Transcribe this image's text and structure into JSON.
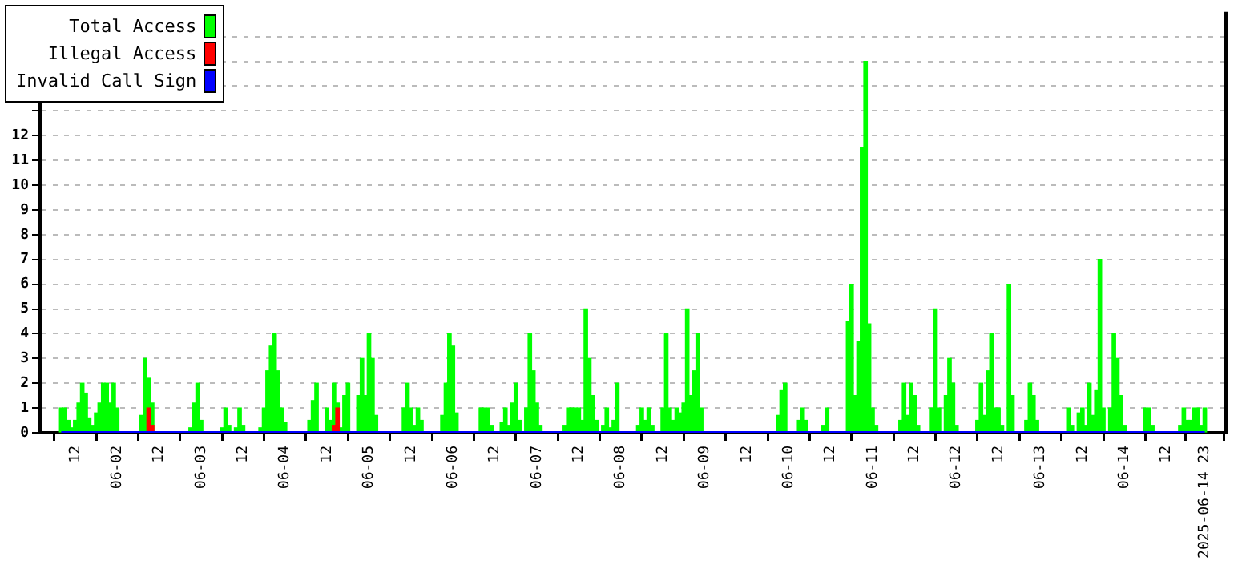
{
  "chart_data": {
    "type": "bar",
    "xlim": [
      "2025-06-01T08:00",
      "2025-06-14T23:00"
    ],
    "xticks": [
      {
        "value": "2025-06-01T12:00",
        "label": "12"
      },
      {
        "value": "2025-06-02T00:00",
        "label": "06-02"
      },
      {
        "value": "2025-06-02T12:00",
        "label": "12"
      },
      {
        "value": "2025-06-03T00:00",
        "label": "06-03"
      },
      {
        "value": "2025-06-03T12:00",
        "label": "12"
      },
      {
        "value": "2025-06-04T00:00",
        "label": "06-04"
      },
      {
        "value": "2025-06-04T12:00",
        "label": "12"
      },
      {
        "value": "2025-06-05T00:00",
        "label": "06-05"
      },
      {
        "value": "2025-06-05T12:00",
        "label": "12"
      },
      {
        "value": "2025-06-06T00:00",
        "label": "06-06"
      },
      {
        "value": "2025-06-06T12:00",
        "label": "12"
      },
      {
        "value": "2025-06-07T00:00",
        "label": "06-07"
      },
      {
        "value": "2025-06-07T12:00",
        "label": "12"
      },
      {
        "value": "2025-06-08T00:00",
        "label": "06-08"
      },
      {
        "value": "2025-06-08T12:00",
        "label": "12"
      },
      {
        "value": "2025-06-09T00:00",
        "label": "06-09"
      },
      {
        "value": "2025-06-09T12:00",
        "label": "12"
      },
      {
        "value": "2025-06-10T00:00",
        "label": "06-10"
      },
      {
        "value": "2025-06-10T12:00",
        "label": "12"
      },
      {
        "value": "2025-06-11T00:00",
        "label": "06-11"
      },
      {
        "value": "2025-06-11T12:00",
        "label": "12"
      },
      {
        "value": "2025-06-12T00:00",
        "label": "06-12"
      },
      {
        "value": "2025-06-12T12:00",
        "label": "12"
      },
      {
        "value": "2025-06-13T00:00",
        "label": "06-13"
      },
      {
        "value": "2025-06-13T12:00",
        "label": "12"
      },
      {
        "value": "2025-06-14T00:00",
        "label": "06-14"
      },
      {
        "value": "2025-06-14T12:00",
        "label": "12"
      },
      {
        "value": "2025-06-14T23:00",
        "label": "2025-06-14 23"
      }
    ],
    "ylim": [
      0,
      17
    ],
    "yticks": [
      0,
      1,
      2,
      3,
      4,
      5,
      6,
      7,
      8,
      9,
      10,
      11,
      12,
      {
        "value": 13,
        "label": null
      },
      {
        "value": 14,
        "label": null
      },
      {
        "value": 15,
        "label": null
      },
      {
        "value": 16,
        "label": null
      }
    ],
    "grid": "y",
    "legend": "top left",
    "series": [
      {
        "name": "Total Access",
        "color": "#00ff00",
        "x": [
          "2025-06-01T08:00",
          "2025-06-01T09:00",
          "2025-06-01T10:00",
          "2025-06-01T11:00",
          "2025-06-01T12:00",
          "2025-06-01T13:00",
          "2025-06-01T14:00",
          "2025-06-01T15:00",
          "2025-06-01T16:00",
          "2025-06-01T17:00",
          "2025-06-01T18:00",
          "2025-06-01T19:00",
          "2025-06-01T20:00",
          "2025-06-01T21:00",
          "2025-06-01T22:00",
          "2025-06-01T23:00",
          "2025-06-02T00:00",
          "2025-06-02T07:00",
          "2025-06-02T08:00",
          "2025-06-02T09:00",
          "2025-06-02T10:00",
          "2025-06-02T21:00",
          "2025-06-02T22:00",
          "2025-06-02T23:00",
          "2025-06-03T00:00",
          "2025-06-03T06:00",
          "2025-06-03T07:00",
          "2025-06-03T08:00",
          "2025-06-03T10:00",
          "2025-06-03T11:00",
          "2025-06-03T12:00",
          "2025-06-03T17:00",
          "2025-06-03T18:00",
          "2025-06-03T19:00",
          "2025-06-03T20:00",
          "2025-06-03T21:00",
          "2025-06-03T22:00",
          "2025-06-03T23:00",
          "2025-06-04T00:00",
          "2025-06-04T07:00",
          "2025-06-04T08:00",
          "2025-06-04T09:00",
          "2025-06-04T12:00",
          "2025-06-04T13:00",
          "2025-06-04T14:00",
          "2025-06-04T15:00",
          "2025-06-04T16:00",
          "2025-06-04T17:00",
          "2025-06-04T18:00",
          "2025-06-04T21:00",
          "2025-06-04T22:00",
          "2025-06-04T23:00",
          "2025-06-05T00:00",
          "2025-06-05T01:00",
          "2025-06-05T02:00",
          "2025-06-05T10:00",
          "2025-06-05T11:00",
          "2025-06-05T12:00",
          "2025-06-05T13:00",
          "2025-06-05T14:00",
          "2025-06-05T15:00",
          "2025-06-05T21:00",
          "2025-06-05T22:00",
          "2025-06-05T23:00",
          "2025-06-06T00:00",
          "2025-06-06T01:00",
          "2025-06-06T08:00",
          "2025-06-06T09:00",
          "2025-06-06T10:00",
          "2025-06-06T11:00",
          "2025-06-06T14:00",
          "2025-06-06T15:00",
          "2025-06-06T16:00",
          "2025-06-06T17:00",
          "2025-06-06T18:00",
          "2025-06-06T19:00",
          "2025-06-06T21:00",
          "2025-06-06T22:00",
          "2025-06-06T23:00",
          "2025-06-07T00:00",
          "2025-06-07T01:00",
          "2025-06-07T08:00",
          "2025-06-07T09:00",
          "2025-06-07T10:00",
          "2025-06-07T11:00",
          "2025-06-07T12:00",
          "2025-06-07T13:00",
          "2025-06-07T14:00",
          "2025-06-07T15:00",
          "2025-06-07T16:00",
          "2025-06-07T17:00",
          "2025-06-07T19:00",
          "2025-06-07T20:00",
          "2025-06-07T21:00",
          "2025-06-07T22:00",
          "2025-06-07T23:00",
          "2025-06-08T05:00",
          "2025-06-08T06:00",
          "2025-06-08T07:00",
          "2025-06-08T08:00",
          "2025-06-08T09:00",
          "2025-06-08T12:00",
          "2025-06-08T13:00",
          "2025-06-08T14:00",
          "2025-06-08T15:00",
          "2025-06-08T16:00",
          "2025-06-08T17:00",
          "2025-06-08T18:00",
          "2025-06-08T19:00",
          "2025-06-08T20:00",
          "2025-06-08T21:00",
          "2025-06-08T22:00",
          "2025-06-08T23:00",
          "2025-06-09T21:00",
          "2025-06-09T22:00",
          "2025-06-09T23:00",
          "2025-06-10T03:00",
          "2025-06-10T04:00",
          "2025-06-10T05:00",
          "2025-06-10T10:00",
          "2025-06-10T11:00",
          "2025-06-10T17:00",
          "2025-06-10T18:00",
          "2025-06-10T19:00",
          "2025-06-10T20:00",
          "2025-06-10T21:00",
          "2025-06-10T22:00",
          "2025-06-10T23:00",
          "2025-06-11T00:00",
          "2025-06-11T01:00",
          "2025-06-11T08:00",
          "2025-06-11T09:00",
          "2025-06-11T10:00",
          "2025-06-11T11:00",
          "2025-06-11T12:00",
          "2025-06-11T13:00",
          "2025-06-11T17:00",
          "2025-06-11T18:00",
          "2025-06-11T19:00",
          "2025-06-11T21:00",
          "2025-06-11T22:00",
          "2025-06-11T23:00",
          "2025-06-12T00:00",
          "2025-06-12T06:00",
          "2025-06-12T07:00",
          "2025-06-12T08:00",
          "2025-06-12T09:00",
          "2025-06-12T10:00",
          "2025-06-12T11:00",
          "2025-06-12T12:00",
          "2025-06-12T13:00",
          "2025-06-12T15:00",
          "2025-06-12T16:00",
          "2025-06-12T20:00",
          "2025-06-12T21:00",
          "2025-06-12T22:00",
          "2025-06-12T23:00",
          "2025-06-13T08:00",
          "2025-06-13T09:00",
          "2025-06-13T11:00",
          "2025-06-13T12:00",
          "2025-06-13T13:00",
          "2025-06-13T14:00",
          "2025-06-13T15:00",
          "2025-06-13T16:00",
          "2025-06-13T17:00",
          "2025-06-13T18:00",
          "2025-06-13T20:00",
          "2025-06-13T21:00",
          "2025-06-13T22:00",
          "2025-06-13T23:00",
          "2025-06-14T00:00",
          "2025-06-14T06:00",
          "2025-06-14T07:00",
          "2025-06-14T08:00",
          "2025-06-14T16:00",
          "2025-06-14T17:00",
          "2025-06-14T18:00",
          "2025-06-14T19:00",
          "2025-06-14T20:00",
          "2025-06-14T21:00",
          "2025-06-14T22:00",
          "2025-06-14T23:00"
        ],
        "values": [
          1,
          1,
          0.5,
          0.2,
          0.5,
          1.2,
          2,
          1.6,
          0.6,
          0.3,
          0.8,
          1.2,
          2,
          2,
          1.2,
          2,
          1,
          0.7,
          3,
          2.2,
          1.2,
          0.2,
          1.2,
          2,
          0.5,
          0.2,
          1,
          0.3,
          0.2,
          1,
          0.3,
          0.2,
          1,
          2.5,
          3.5,
          4,
          2.5,
          1,
          0.4,
          0.5,
          1.3,
          2,
          1,
          0.5,
          2,
          1.2,
          0.2,
          1.5,
          2,
          1.5,
          3,
          1.5,
          4,
          3,
          0.7,
          1,
          2,
          1,
          0.3,
          1,
          0.5,
          0.7,
          2,
          4,
          3.5,
          0.8,
          1,
          1,
          1,
          0.3,
          0.4,
          1,
          0.3,
          1.2,
          2,
          0.5,
          1,
          4,
          2.5,
          1.2,
          0.3,
          0.3,
          1,
          1,
          1,
          1,
          0.5,
          5,
          3,
          1.5,
          0.5,
          0.3,
          1,
          0.2,
          0.5,
          2,
          0.3,
          1,
          0.5,
          1,
          0.3,
          1,
          4,
          1,
          0.5,
          1,
          0.8,
          1.2,
          5,
          1.5,
          2.5,
          4,
          1,
          0.7,
          1.7,
          2,
          0.5,
          1,
          0.5,
          0.3,
          1,
          4.5,
          6,
          1.5,
          3.7,
          11.5,
          15,
          4.4,
          1,
          0.3,
          0.5,
          2,
          0.7,
          2,
          1.5,
          0.3,
          1,
          5,
          1,
          1.5,
          3,
          2,
          0.3,
          0.5,
          2,
          0.7,
          2.5,
          4,
          1,
          1,
          0.3,
          6,
          1.5,
          0.5,
          2,
          1.5,
          0.5,
          1,
          0.3,
          0.8,
          1,
          0.3,
          2,
          0.7,
          1.7,
          7,
          1,
          1,
          4,
          3,
          1.5,
          0.3,
          1,
          1,
          0.3,
          0.3,
          1,
          0.5,
          0.5,
          1,
          1,
          0.3,
          1
        ]
      },
      {
        "name": "Illegal Access",
        "color": "#ff0000",
        "x": [
          "2025-06-02T09:00",
          "2025-06-02T10:00",
          "2025-06-04T14:00",
          "2025-06-04T15:00"
        ],
        "values": [
          1,
          0.3,
          0.3,
          1
        ]
      },
      {
        "name": "Invalid Call Sign",
        "color": "#0000ff",
        "type": "line",
        "x": [
          "2025-06-01T08:00",
          "2025-06-14T23:00"
        ],
        "values": [
          0,
          0
        ]
      }
    ]
  }
}
